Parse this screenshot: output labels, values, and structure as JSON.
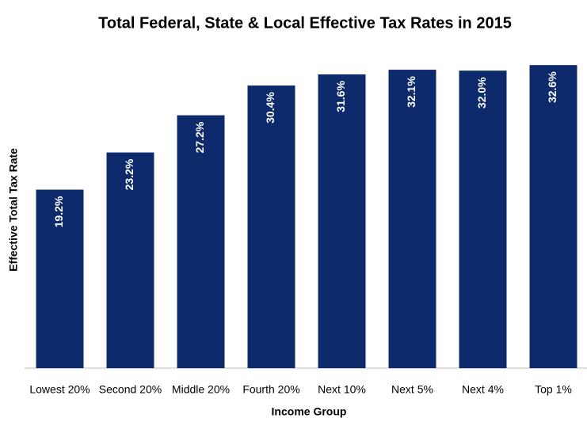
{
  "chart_data": {
    "type": "bar",
    "title": "Total Federal, State & Local Effective Tax Rates in 2015",
    "x_label": "Income Group",
    "y_label": "Effective Total Tax Rate",
    "categories": [
      "Lowest 20%",
      "Second 20%",
      "Middle 20%",
      "Fourth 20%",
      "Next 10%",
      "Next 5%",
      "Next 4%",
      "Top 1%"
    ],
    "values": [
      19.2,
      23.2,
      27.2,
      30.4,
      31.6,
      32.1,
      32.0,
      32.6
    ],
    "value_labels": [
      "19.2%",
      "23.2%",
      "27.2%",
      "30.4%",
      "31.6%",
      "32.1%",
      "32.0%",
      "32.6%"
    ],
    "color": "#0d2a6c",
    "ylim": [
      0,
      35
    ]
  }
}
